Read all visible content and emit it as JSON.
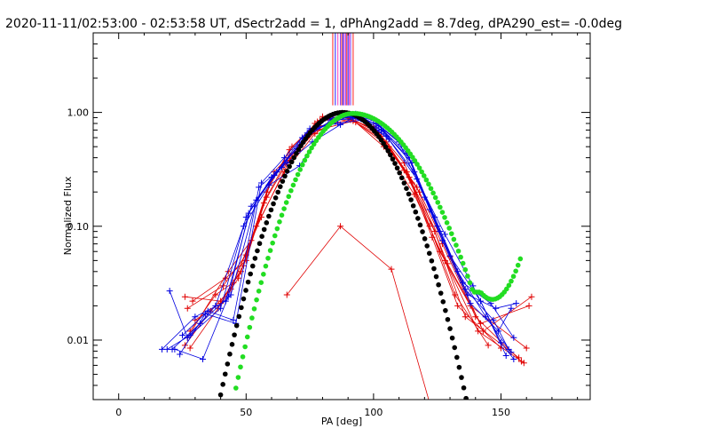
{
  "chart_data": {
    "type": "line",
    "title": "2020-11-11/02:53:00 - 02:53:58 UT, dSectr2add = 1, dPhAng2add = 8.7deg, dPA290_est= -0.0deg",
    "xlabel": "PA [deg]",
    "ylabel": "Normalized Flux",
    "xlim": [
      -10,
      185
    ],
    "ylim": [
      0.003,
      5.0
    ],
    "yscale": "log",
    "x_ticks": [
      0,
      50,
      100,
      150
    ],
    "x_tick_labels": [
      "0",
      "50",
      "100",
      "150"
    ],
    "y_ticks": [
      0.01,
      0.1,
      1.0
    ],
    "y_tick_labels": [
      "0.01",
      "0.10",
      "1.00"
    ],
    "colors": {
      "red_series": "#e00000",
      "blue_series": "#0000e0",
      "black_fit": "#000000",
      "green_fit": "#22dd22",
      "vertical_lines": [
        "#ff2020",
        "#2020ff",
        "#ff40c0",
        "#8040ff"
      ]
    },
    "vertical_markers_x": [
      84,
      85,
      86,
      87,
      87.5,
      88,
      88.5,
      89,
      89.5,
      90,
      90.5,
      91,
      92
    ],
    "red_series": [
      {
        "x": [
          26,
          40,
          48,
          58,
          67,
          78,
          90,
          100,
          112,
          122,
          132,
          145
        ],
        "y": [
          0.024,
          0.022,
          0.04,
          0.2,
          0.47,
          0.83,
          0.95,
          0.75,
          0.36,
          0.1,
          0.025,
          0.009
        ]
      },
      {
        "x": [
          27,
          41,
          50,
          59,
          68,
          79,
          90,
          101,
          113,
          123,
          133,
          150
        ],
        "y": [
          0.019,
          0.03,
          0.056,
          0.23,
          0.5,
          0.85,
          0.9,
          0.7,
          0.3,
          0.08,
          0.02,
          0.0085
        ]
      },
      {
        "x": [
          28,
          38,
          45,
          56,
          67,
          79,
          91,
          103,
          115,
          127,
          140,
          158
        ],
        "y": [
          0.012,
          0.025,
          0.032,
          0.12,
          0.38,
          0.76,
          0.86,
          0.62,
          0.24,
          0.07,
          0.016,
          0.0065
        ]
      },
      {
        "x": [
          26,
          36,
          44,
          54,
          65,
          77,
          89,
          104,
          116,
          128,
          141,
          159
        ],
        "y": [
          0.009,
          0.018,
          0.028,
          0.1,
          0.3,
          0.65,
          0.98,
          0.5,
          0.19,
          0.05,
          0.012,
          0.0063
        ]
      },
      {
        "x": [
          29,
          42,
          50,
          60,
          70,
          80,
          91,
          102,
          114,
          126,
          138,
          160
        ],
        "y": [
          0.022,
          0.035,
          0.05,
          0.27,
          0.44,
          0.92,
          0.88,
          0.66,
          0.27,
          0.06,
          0.02,
          0.0085
        ]
      },
      {
        "x": [
          30,
          40,
          49,
          58,
          67,
          78,
          92,
          105,
          117,
          129,
          142,
          161
        ],
        "y": [
          0.015,
          0.021,
          0.045,
          0.18,
          0.42,
          0.7,
          0.84,
          0.55,
          0.22,
          0.047,
          0.014,
          0.02
        ]
      },
      {
        "x": [
          28,
          39,
          47,
          57,
          66,
          77,
          88,
          100,
          112,
          124,
          136,
          157
        ],
        "y": [
          0.0085,
          0.019,
          0.035,
          0.16,
          0.36,
          0.8,
          0.93,
          0.72,
          0.31,
          0.09,
          0.016,
          0.007
        ]
      },
      {
        "x": [
          27,
          43,
          52,
          61,
          71,
          82,
          93,
          106,
          118,
          130,
          143,
          162
        ],
        "y": [
          0.0105,
          0.04,
          0.075,
          0.3,
          0.52,
          0.9,
          0.82,
          0.5,
          0.2,
          0.054,
          0.012,
          0.024
        ]
      },
      {
        "x": [
          66,
          87,
          107,
          122
        ],
        "y": [
          0.025,
          0.1,
          0.042,
          0.0028
        ]
      }
    ],
    "blue_series": [
      {
        "x": [
          17,
          30,
          42,
          52,
          62,
          73,
          84,
          92,
          100,
          110,
          120,
          130,
          142,
          152
        ],
        "y": [
          0.0083,
          0.016,
          0.022,
          0.15,
          0.3,
          0.6,
          0.85,
          0.95,
          0.85,
          0.55,
          0.18,
          0.055,
          0.022,
          0.0073
        ]
      },
      {
        "x": [
          19,
          28,
          40,
          50,
          60,
          70,
          82,
          91,
          101,
          112,
          122,
          133,
          144,
          154
        ],
        "y": [
          0.0083,
          0.011,
          0.019,
          0.12,
          0.27,
          0.48,
          0.9,
          0.92,
          0.8,
          0.5,
          0.14,
          0.04,
          0.016,
          0.0078
        ]
      },
      {
        "x": [
          21,
          32,
          44,
          54,
          64,
          74,
          85,
          93,
          102,
          113,
          124,
          135,
          146,
          155
        ],
        "y": [
          0.0083,
          0.014,
          0.025,
          0.17,
          0.33,
          0.66,
          0.83,
          0.97,
          0.76,
          0.44,
          0.12,
          0.032,
          0.021,
          0.0105
        ]
      },
      {
        "x": [
          20,
          27,
          38,
          49,
          59,
          71,
          83,
          92,
          103,
          114,
          125,
          136,
          147,
          153
        ],
        "y": [
          0.027,
          0.0105,
          0.02,
          0.1,
          0.23,
          0.34,
          0.88,
          0.9,
          0.7,
          0.4,
          0.1,
          0.028,
          0.015,
          0.0083
        ]
      },
      {
        "x": [
          25,
          35,
          45,
          55,
          66,
          76,
          87,
          94,
          104,
          115,
          126,
          137,
          148,
          156
        ],
        "y": [
          0.011,
          0.018,
          0.015,
          0.22,
          0.36,
          0.55,
          0.78,
          0.94,
          0.68,
          0.36,
          0.09,
          0.025,
          0.019,
          0.021
        ]
      },
      {
        "x": [
          22,
          33,
          43,
          51,
          61,
          72,
          84,
          95,
          105,
          116,
          127,
          138,
          149,
          154
        ],
        "y": [
          0.0083,
          0.0068,
          0.024,
          0.13,
          0.28,
          0.6,
          0.86,
          0.88,
          0.62,
          0.3,
          0.075,
          0.021,
          0.012,
          0.019
        ]
      },
      {
        "x": [
          24,
          34,
          46,
          56,
          65,
          75,
          86,
          96,
          106,
          117,
          128,
          139,
          150,
          155
        ],
        "y": [
          0.0075,
          0.017,
          0.014,
          0.24,
          0.4,
          0.72,
          0.8,
          0.86,
          0.58,
          0.26,
          0.085,
          0.03,
          0.0095,
          0.0068
        ]
      }
    ],
    "black_fit": {
      "amplitude": 1.0,
      "center": 88,
      "sigma": 14.2,
      "x_range": [
        40,
        150
      ]
    },
    "green_fit": {
      "amplitude": 0.98,
      "center": 92,
      "sigma_left": 13.8,
      "sigma_right": 17.5,
      "min_x": 150,
      "min_y": 0.024,
      "end_x": 158,
      "end_y": 0.055,
      "x_range": [
        46,
        158
      ]
    }
  }
}
